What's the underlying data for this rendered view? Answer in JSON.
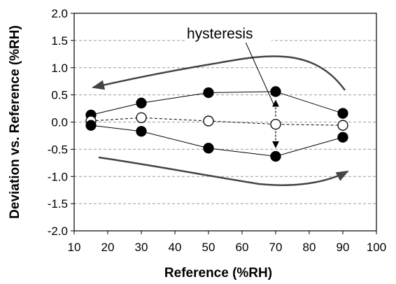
{
  "chart_data": {
    "type": "line",
    "xlabel": "Reference (%RH)",
    "ylabel": "Deviation vs. Reference (%RH)",
    "xlim": [
      10,
      100
    ],
    "ylim": [
      -2.0,
      2.0
    ],
    "x_ticks": [
      "10",
      "20",
      "30",
      "40",
      "50",
      "60",
      "70",
      "80",
      "90",
      "100"
    ],
    "y_ticks": [
      "2.0",
      "1.5",
      "1.0",
      "0.5",
      "0.0",
      "-0.5",
      "-1.0",
      "-1.5",
      "-2.0"
    ],
    "grid": "horizontal dashed",
    "series": [
      {
        "x": [
          15,
          30,
          50,
          70,
          90
        ],
        "y": [
          0.13,
          0.35,
          0.54,
          0.56,
          0.16
        ],
        "marker": "filled-circle",
        "line": "solid"
      },
      {
        "x": [
          15,
          30,
          50,
          70,
          90
        ],
        "y": [
          0.02,
          0.08,
          0.02,
          -0.04,
          -0.06
        ],
        "marker": "open-circle",
        "line": "dashed"
      },
      {
        "x": [
          15,
          30,
          50,
          70,
          90
        ],
        "y": [
          -0.06,
          -0.17,
          -0.48,
          -0.63,
          -0.28
        ],
        "marker": "filled-circle",
        "line": "solid"
      }
    ],
    "annotations": [
      {
        "text": "hysteresis"
      }
    ]
  }
}
